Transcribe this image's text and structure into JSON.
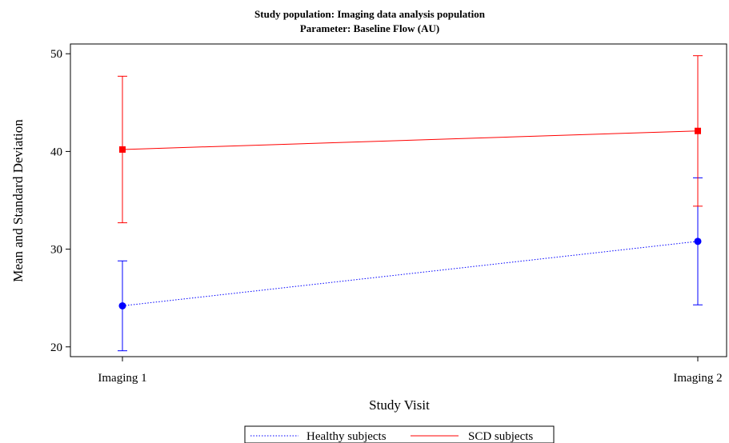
{
  "chart_data": {
    "type": "line",
    "title": "Study population: Imaging data analysis population",
    "subtitle": "Parameter: Baseline Flow (AU)",
    "xlabel": "Study Visit",
    "ylabel": "Mean and Standard Deviation",
    "categories": [
      "Imaging 1",
      "Imaging 2"
    ],
    "ylim": [
      19,
      51
    ],
    "yticks": [
      20,
      30,
      40,
      50
    ],
    "grid": false,
    "legend_position": "bottom",
    "series": [
      {
        "name": "Healthy subjects",
        "color": "#0000ff",
        "line_style": "dotted",
        "marker": "circle",
        "values": [
          24.2,
          30.8
        ],
        "lower": [
          19.6,
          24.3
        ],
        "upper": [
          28.8,
          37.3
        ]
      },
      {
        "name": "SCD subjects",
        "color": "#ff0000",
        "line_style": "solid",
        "marker": "square",
        "values": [
          40.2,
          42.1
        ],
        "lower": [
          32.7,
          34.4
        ],
        "upper": [
          47.7,
          49.8
        ]
      }
    ]
  }
}
